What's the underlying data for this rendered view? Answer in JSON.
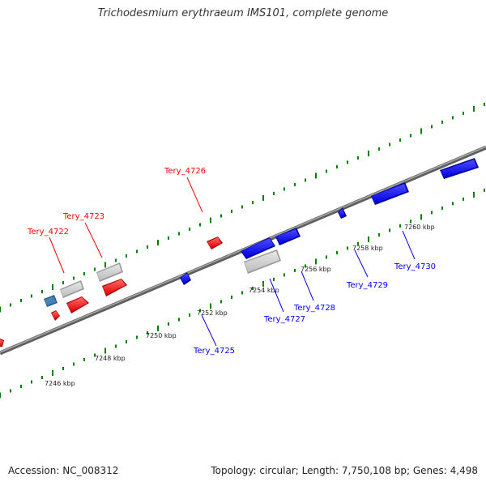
{
  "title": "Trichodesmium erythraeum IMS101, complete genome",
  "accession": "Accession: NC_008312",
  "summary": "Topology: circular; Length: 7,750,108 bp; Genes: 4,498",
  "colors": {
    "forward": "#ff0000",
    "reverse": "#0000ff",
    "other": "#cccccc",
    "misc": "#4682b4",
    "ticks": "#008000",
    "backbone": "#808080"
  },
  "scale_labels": [
    "7246 kbp",
    "7248 kbp",
    "7250 kbp",
    "7252 kbp",
    "7254 kbp",
    "7256 kbp",
    "7258 kbp",
    "7260 kbp"
  ],
  "gene_labels": {
    "forward": [
      "Tery_4722",
      "Tery_4723",
      "Tery_4726"
    ],
    "reverse": [
      "Tery_4725",
      "Tery_4727",
      "Tery_4728",
      "Tery_4729",
      "Tery_4730"
    ]
  }
}
